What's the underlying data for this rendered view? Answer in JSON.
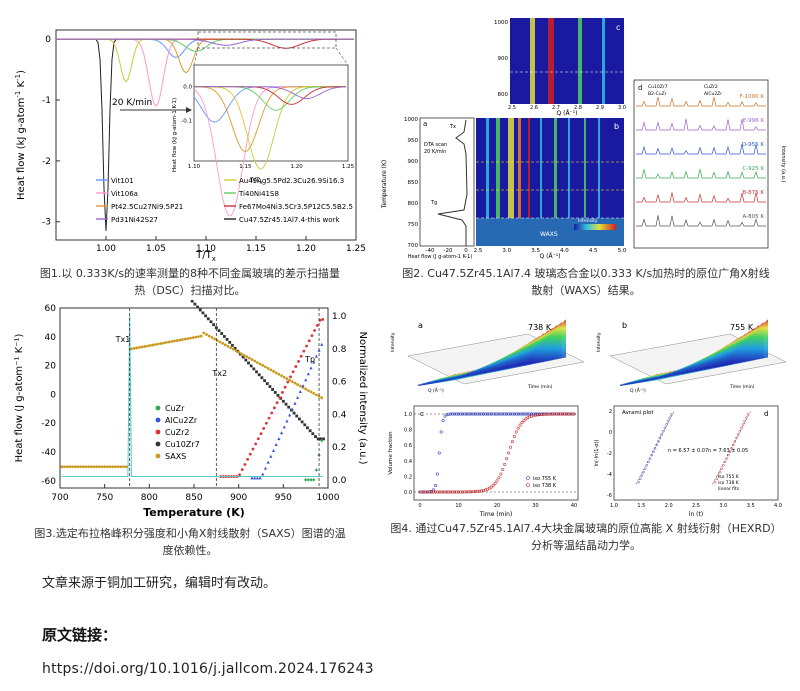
{
  "figures": [
    {
      "id": "fig1",
      "caption_line1": "图1.以 0.333K/s的速率测量的8种不同金属玻璃的差示扫描量",
      "caption_line2": "热（DSC）扫描对比。",
      "chart_data": {
        "type": "line",
        "xlabel": "T/T",
        "xlabel_sub": "x",
        "ylabel": "Heat flow (kJ g-atom",
        "ylabel_sup": "-1",
        "ylabel_tail": " K",
        "ylabel_sup2": "-1",
        "ylabel_close": ")",
        "xlim": [
          0.95,
          1.25
        ],
        "ylim": [
          -3.3,
          0.15
        ],
        "x_ticks": [
          "1.00",
          "1.05",
          "1.10",
          "1.15",
          "1.20",
          "1.25"
        ],
        "y_ticks": [
          "0",
          "-1",
          "-2",
          "-3"
        ],
        "rate_label": "20 K/min",
        "legend": [
          {
            "name": "Vit101",
            "color": "#6699ff"
          },
          {
            "name": "Au49Ag5.5Pd2.3Cu26.9Si16.3",
            "color": "#cccc33"
          },
          {
            "name": "Vit106a",
            "color": "#ff99cc"
          },
          {
            "name": "Ti40Ni41S8",
            "color": "#66cc66"
          },
          {
            "name": "Pt42.5Cu27Ni9.5P21",
            "color": "#dd9933"
          },
          {
            "name": "Fe67Mo4Ni3.5Cr3.5P12C5.5B2.5",
            "color": "#cc3333"
          },
          {
            "name": "Pd31Ni42S27",
            "color": "#9966cc"
          },
          {
            "name": "Cu47.5Zr45.1Al7.4-this work",
            "color": "#222222"
          }
        ],
        "inset": {
          "ylabel": "Heat flow (kJ g-atom-1 K-1)",
          "xlabel": "T/T",
          "x_ticks": [
            "1.10",
            "1.15",
            "1.20",
            "1.25"
          ],
          "y_ticks": [
            "0.0",
            "-0.1"
          ]
        }
      }
    },
    {
      "id": "fig2",
      "caption_line1": "图2. Cu47.5Zr45.1Al7.4 玻璃态合金以0.333 K/s加热时的原位广角X射线",
      "caption_line2": "散射（WAXS）结果。",
      "chart_data": {
        "type": "heatmap",
        "panels": [
          "a",
          "b",
          "c",
          "d"
        ],
        "ylabel": "Temperature (K)",
        "y_ticks": [
          "1000",
          "950",
          "900",
          "850",
          "800",
          "750",
          "700"
        ],
        "a_xlabel": "Heat flow (J g-atom-1 K-1)",
        "a_x_ticks": [
          "-40",
          "-20",
          "0"
        ],
        "b_xlabel": "Q (Å⁻¹)",
        "b_x_ticks": [
          "2.5",
          "3.0",
          "3.5",
          "4.0",
          "4.5",
          "5.0"
        ],
        "c_xlabel": "Q (Å⁻¹)",
        "c_x_ticks": [
          "2.5",
          "2.6",
          "2.7",
          "2.8",
          "2.9",
          "3.0"
        ],
        "c_y_ticks": [
          "1000",
          "900",
          "800"
        ],
        "d_labels": [
          "F-1000 K",
          "E-996 K",
          "D-955 K",
          "C-925 K",
          "B-875 K",
          "A-805 K"
        ],
        "d_legend": [
          "Cu10Zr7",
          "CuZr2",
          "B2-CuZr",
          "AlCu2Zr"
        ],
        "d_ylabel": "Intensity (a.u.)",
        "a_annotations": [
          "DTA scan",
          "20 K/min",
          "Tx",
          "Tg"
        ],
        "b_annotations": [
          "WAXS",
          "Intensity"
        ],
        "color_scale": [
          "#1a1aa0",
          "#2a6ee0",
          "#30c0e0",
          "#50d060",
          "#e0e040",
          "#f08020",
          "#d02020"
        ]
      }
    },
    {
      "id": "fig3",
      "caption_line1": "图3.选定布拉格峰积分强度和小角X射线散射（SAXS）图谱的温",
      "caption_line2": "度依赖性。",
      "chart_data": {
        "type": "scatter",
        "xlabel": "Temperature (K)",
        "ylabel": "Heat flow (J g-atom⁻¹ K⁻¹)",
        "y2label": "Normalized intensity (a.u.)",
        "xlim": [
          700,
          1000
        ],
        "ylim": [
          -65,
          60
        ],
        "y2lim": [
          -0.05,
          1.05
        ],
        "x_ticks": [
          "700",
          "750",
          "800",
          "850",
          "900",
          "950",
          "1000"
        ],
        "y_ticks": [
          "60",
          "40",
          "20",
          "0",
          "-20",
          "-40",
          "-60"
        ],
        "y2_ticks": [
          "1.0",
          "0.8",
          "0.6",
          "0.4",
          "0.2",
          "0.0"
        ],
        "markers": [
          "Tx1",
          "Tx2",
          "Tp"
        ],
        "marker_x": [
          778,
          875,
          990
        ],
        "series": [
          {
            "name": "CuZr",
            "color": "#33aa55",
            "shape": "diamond"
          },
          {
            "name": "AlCu2Zr",
            "color": "#3355dd",
            "shape": "triangle"
          },
          {
            "name": "CuZr2",
            "color": "#dd3333",
            "shape": "circle"
          },
          {
            "name": "Cu10Zr7",
            "color": "#333333",
            "shape": "square"
          },
          {
            "name": "SAXS",
            "color": "#c89a1e",
            "shape": "circle"
          }
        ]
      }
    },
    {
      "id": "fig4",
      "caption_line1": "图4. 通过Cu47.5Zr45.1Al7.4大块金属玻璃的原位高能 X 射线衍射（HEXRD）",
      "caption_line2": "分析等温结晶动力学。",
      "chart_data": {
        "type": "line",
        "panels": [
          "a",
          "b",
          "c",
          "d"
        ],
        "a_label": "738 K",
        "b_label": "755 K",
        "c_xlabel": "Time (min)",
        "c_ylabel": "Volume fraction",
        "c_x_ticks": [
          "0",
          "10",
          "20",
          "30",
          "40"
        ],
        "c_y_ticks": [
          "1.0",
          "0.8",
          "0.6",
          "0.4",
          "0.2",
          "0.0"
        ],
        "c_legend": [
          "iso 755 K",
          "iso 738 K"
        ],
        "d_title": "Avrami plot",
        "d_xlabel": "ln (t)",
        "d_ylabel": "ln(-ln(1-α))",
        "d_x_ticks": [
          "1.0",
          "1.5",
          "2.0",
          "2.5",
          "3.0",
          "3.5",
          "4.0"
        ],
        "d_y_ticks": [
          "2",
          "0",
          "-2",
          "-4",
          "-6"
        ],
        "d_legend": [
          "iso 755 K",
          "iso 738 K",
          "linear fits"
        ],
        "d_n1": "n = 6.57 ± 0.07",
        "d_n2": "n = 7.63 ± 0.05",
        "surface_xlabel": "Time (min)",
        "surface_ylabel": "Intensity",
        "surface_zlabel": "Q (Å⁻¹)"
      }
    }
  ],
  "note": "文章来源于铜加工研究，编辑时有改动。",
  "link_heading": "原文链接：",
  "link_url": "https://doi.org/10.1016/j.jallcom.2024.176243"
}
